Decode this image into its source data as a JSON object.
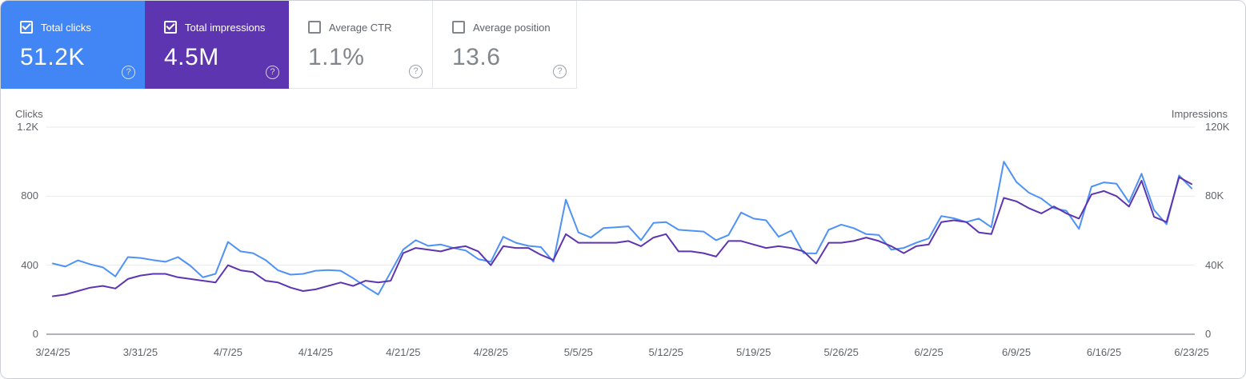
{
  "cards": [
    {
      "label": "Total clicks",
      "value": "51.2K",
      "checked": true,
      "style": "colored",
      "bg": "#4285f4"
    },
    {
      "label": "Total impressions",
      "value": "4.5M",
      "checked": true,
      "style": "colored",
      "bg": "#5e35b1"
    },
    {
      "label": "Average CTR",
      "value": "1.1%",
      "checked": false,
      "style": "plain",
      "bg": "#ffffff"
    },
    {
      "label": "Average position",
      "value": "13.6",
      "checked": false,
      "style": "plain",
      "bg": "#ffffff"
    }
  ],
  "chart_data": {
    "type": "line",
    "grid": true,
    "x_tick_every": 7,
    "left_axis": {
      "title": "Clicks",
      "max": 1200,
      "ticks": [
        [
          1200,
          "1.2K"
        ],
        [
          800,
          "800"
        ],
        [
          400,
          "400"
        ],
        [
          0,
          "0"
        ]
      ]
    },
    "right_axis": {
      "title": "Impressions",
      "max": 120000,
      "ticks": [
        [
          120000,
          "120K"
        ],
        [
          80000,
          "80K"
        ],
        [
          40000,
          "40K"
        ],
        [
          0,
          "0"
        ]
      ]
    },
    "x": [
      "3/24/25",
      "3/25/25",
      "3/26/25",
      "3/27/25",
      "3/28/25",
      "3/29/25",
      "3/30/25",
      "3/31/25",
      "4/1/25",
      "4/2/25",
      "4/3/25",
      "4/4/25",
      "4/5/25",
      "4/6/25",
      "4/7/25",
      "4/8/25",
      "4/9/25",
      "4/10/25",
      "4/11/25",
      "4/12/25",
      "4/13/25",
      "4/14/25",
      "4/15/25",
      "4/16/25",
      "4/17/25",
      "4/18/25",
      "4/19/25",
      "4/20/25",
      "4/21/25",
      "4/22/25",
      "4/23/25",
      "4/24/25",
      "4/25/25",
      "4/26/25",
      "4/27/25",
      "4/28/25",
      "4/29/25",
      "4/30/25",
      "5/1/25",
      "5/2/25",
      "5/3/25",
      "5/4/25",
      "5/5/25",
      "5/6/25",
      "5/7/25",
      "5/8/25",
      "5/9/25",
      "5/10/25",
      "5/11/25",
      "5/12/25",
      "5/13/25",
      "5/14/25",
      "5/15/25",
      "5/16/25",
      "5/17/25",
      "5/18/25",
      "5/19/25",
      "5/20/25",
      "5/21/25",
      "5/22/25",
      "5/23/25",
      "5/24/25",
      "5/25/25",
      "5/26/25",
      "5/27/25",
      "5/28/25",
      "5/29/25",
      "5/30/25",
      "5/31/25",
      "6/1/25",
      "6/2/25",
      "6/3/25",
      "6/4/25",
      "6/5/25",
      "6/6/25",
      "6/7/25",
      "6/8/25",
      "6/9/25",
      "6/10/25",
      "6/11/25",
      "6/12/25",
      "6/13/25",
      "6/14/25",
      "6/15/25",
      "6/16/25",
      "6/17/25",
      "6/18/25",
      "6/19/25",
      "6/20/25",
      "6/21/25",
      "6/22/25",
      "6/23/25"
    ],
    "series": [
      {
        "name": "clicks",
        "axis": "left",
        "color": "#4e92f5",
        "values": [
          410,
          392,
          428,
          405,
          388,
          335,
          447,
          442,
          430,
          420,
          447,
          396,
          330,
          350,
          535,
          480,
          470,
          430,
          370,
          345,
          350,
          368,
          372,
          368,
          325,
          275,
          230,
          360,
          490,
          545,
          512,
          520,
          500,
          485,
          435,
          420,
          565,
          530,
          512,
          505,
          420,
          780,
          590,
          560,
          615,
          620,
          625,
          545,
          645,
          650,
          605,
          600,
          595,
          545,
          575,
          705,
          670,
          660,
          565,
          600,
          470,
          468,
          605,
          635,
          615,
          580,
          575,
          490,
          500,
          530,
          555,
          685,
          672,
          650,
          670,
          620,
          1000,
          882,
          820,
          786,
          730,
          715,
          610,
          855,
          880,
          872,
          765,
          930,
          720,
          637,
          920,
          845
        ]
      },
      {
        "name": "impressions",
        "axis": "right",
        "color": "#5e35b1",
        "values": [
          22000,
          23000,
          25000,
          27000,
          28000,
          26500,
          32000,
          34000,
          35000,
          35000,
          33000,
          32000,
          31000,
          30000,
          40000,
          37000,
          36000,
          31000,
          30000,
          27000,
          25000,
          26000,
          28000,
          30000,
          28000,
          31000,
          30000,
          31000,
          47000,
          50000,
          49000,
          48000,
          50000,
          51000,
          48000,
          40000,
          51000,
          50000,
          50000,
          46000,
          43000,
          58000,
          53000,
          53000,
          53000,
          53000,
          54000,
          51000,
          56000,
          58000,
          48000,
          48000,
          47000,
          45000,
          54000,
          54000,
          52000,
          50000,
          51000,
          50000,
          48000,
          41000,
          53000,
          53000,
          54000,
          56000,
          54000,
          51000,
          47000,
          51000,
          52000,
          65000,
          66000,
          65000,
          59000,
          58000,
          79000,
          77000,
          73000,
          70000,
          74000,
          70000,
          67000,
          81000,
          83000,
          80000,
          74000,
          89000,
          68000,
          65000,
          91000,
          87000
        ]
      }
    ]
  }
}
